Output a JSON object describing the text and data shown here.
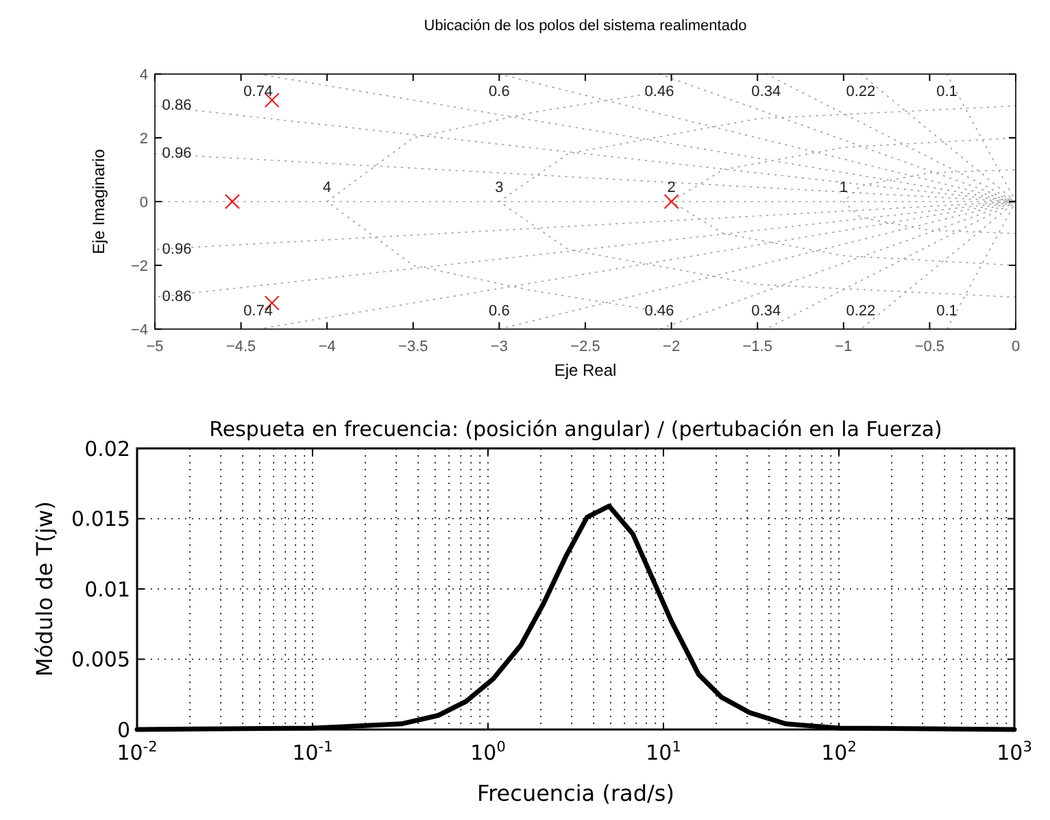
{
  "chart_data": [
    {
      "type": "scatter",
      "title": "Ubicación de los polos del sistema realimentado",
      "xlabel": "Eje Real",
      "ylabel": "Eje Imaginario",
      "xlim": [
        -5,
        0
      ],
      "ylim": [
        -4,
        4
      ],
      "xticks": [
        -5,
        -4.5,
        -4,
        -3.5,
        -3,
        -2.5,
        -2,
        -1.5,
        -1,
        -0.5,
        0
      ],
      "yticks": [
        -4,
        -2,
        0,
        2,
        4
      ],
      "series": [
        {
          "type": "line",
          "line_style": "dotted",
          "marker": "none",
          "color": "#a0a0a0",
          "x": [
            -0.4,
            0,
            -0.4
          ],
          "values": [
            4,
            0,
            -4
          ]
        },
        {
          "type": "line",
          "line_style": "dotted",
          "marker": "none",
          "color": "#a0a0a0",
          "x": [
            -0.9,
            0,
            -0.9
          ],
          "values": [
            4,
            0,
            -4
          ]
        },
        {
          "type": "line",
          "line_style": "dotted",
          "marker": "none",
          "color": "#a0a0a0",
          "x": [
            -1.45,
            0,
            -1.45
          ],
          "values": [
            4,
            0,
            -4
          ]
        },
        {
          "type": "line",
          "line_style": "dotted",
          "marker": "none",
          "color": "#a0a0a0",
          "x": [
            -2.07,
            0,
            -2.07
          ],
          "values": [
            4,
            0,
            -4
          ]
        },
        {
          "type": "line",
          "line_style": "dotted",
          "marker": "none",
          "color": "#a0a0a0",
          "x": [
            -3,
            0,
            -3
          ],
          "values": [
            4,
            0,
            -4
          ]
        },
        {
          "type": "line",
          "line_style": "dotted",
          "marker": "none",
          "color": "#a0a0a0",
          "x": [
            -4.4,
            0,
            -4.4
          ],
          "values": [
            4,
            0,
            -4
          ]
        },
        {
          "type": "line",
          "line_style": "dotted",
          "marker": "none",
          "color": "#a0a0a0",
          "x": [
            -5,
            0,
            -5
          ],
          "values": [
            3,
            0,
            -3
          ]
        },
        {
          "type": "line",
          "line_style": "dotted",
          "marker": "none",
          "color": "#a0a0a0",
          "x": [
            -5,
            0,
            -5
          ],
          "values": [
            1.5,
            0,
            -1.5
          ]
        },
        {
          "type": "line",
          "line_style": "dotted",
          "marker": "none",
          "color": "#a0a0a0",
          "x": [
            -5,
            0
          ],
          "values": [
            0,
            0
          ]
        },
        {
          "type": "line",
          "line_style": "dotted",
          "marker": "none",
          "color": "#a0a0a0",
          "x": [
            0,
            -0.5,
            -0.9,
            -1,
            -0.9,
            -0.5,
            0
          ],
          "values": [
            -1,
            -0.9,
            -0.5,
            0,
            0.5,
            0.9,
            1
          ]
        },
        {
          "type": "line",
          "line_style": "dotted",
          "marker": "none",
          "color": "#a0a0a0",
          "x": [
            0,
            -1,
            -1.7,
            -2,
            -1.7,
            -1,
            0
          ],
          "values": [
            -2,
            -1.7,
            -1,
            0,
            1,
            1.7,
            2
          ]
        },
        {
          "type": "line",
          "line_style": "dotted",
          "marker": "none",
          "color": "#a0a0a0",
          "x": [
            0,
            -1.5,
            -2.6,
            -3,
            -2.6,
            -1.5,
            0
          ],
          "values": [
            -3,
            -2.6,
            -1.5,
            0,
            1.5,
            2.6,
            3
          ]
        },
        {
          "type": "line",
          "line_style": "dotted",
          "marker": "none",
          "color": "#a0a0a0",
          "x": [
            -2,
            -2.8,
            -3.5,
            -4,
            -3.5,
            -2.8,
            -2
          ],
          "values": [
            -3.5,
            -2.8,
            -2,
            0,
            2,
            2.8,
            3.5
          ]
        },
        {
          "marker": "cross",
          "color": "#ff0000",
          "x": [
            -4.32,
            -4.32,
            -4.55,
            -2
          ],
          "values": [
            3.18,
            -3.18,
            0,
            0
          ]
        }
      ],
      "annotations": [
        {
          "text": "0.74",
          "x": -4.4,
          "y": 4
        },
        {
          "text": "0.6",
          "x": -3,
          "y": 4
        },
        {
          "text": "0.46",
          "x": -2.07,
          "y": 4
        },
        {
          "text": "0.34",
          "x": -1.45,
          "y": 4
        },
        {
          "text": "0.22",
          "x": -0.9,
          "y": 4
        },
        {
          "text": "0.1",
          "x": -0.4,
          "y": 4
        },
        {
          "text": "0.74",
          "x": -4.4,
          "y": -4
        },
        {
          "text": "0.6",
          "x": -3,
          "y": -4
        },
        {
          "text": "0.46",
          "x": -2.07,
          "y": -4
        },
        {
          "text": "0.34",
          "x": -1.45,
          "y": -4
        },
        {
          "text": "0.22",
          "x": -0.9,
          "y": -4
        },
        {
          "text": "0.1",
          "x": -0.4,
          "y": -4
        },
        {
          "text": "0.86",
          "x": -5,
          "y": 3
        },
        {
          "text": "0.96",
          "x": -5,
          "y": 1.5
        },
        {
          "text": "0.96",
          "x": -5,
          "y": -1.5
        },
        {
          "text": "0.86",
          "x": -5,
          "y": -3
        },
        {
          "text": "4",
          "x": -4,
          "y": 0
        },
        {
          "text": "3",
          "x": -3,
          "y": 0
        },
        {
          "text": "2",
          "x": -2,
          "y": 0
        },
        {
          "text": "1",
          "x": -1,
          "y": 0
        }
      ]
    },
    {
      "type": "line",
      "title": "Respueta en frecuencia: (posición angular) / (pertubación en la Fuerza)",
      "xlabel": "Frecuencia (rad/s)",
      "ylabel": "Módulo de T(jw)",
      "log": "x",
      "grid": true,
      "line_style": "solid",
      "marker": "none",
      "xlim": [
        0.01,
        1000
      ],
      "ylim": [
        0,
        0.02
      ],
      "xticks": [
        {
          "value": 0.01,
          "label": "10$^{-2}$"
        },
        {
          "value": 0.1,
          "label": "10$^{-1}$"
        },
        {
          "value": 1,
          "label": "10$^{0}$"
        },
        {
          "value": 10,
          "label": "10$^{1}$"
        },
        {
          "value": 100,
          "label": "10$^{2}$"
        },
        {
          "value": 1000,
          "label": "10$^{3}$"
        }
      ],
      "yticks": [
        0,
        0.005,
        0.01,
        0.015,
        0.02
      ],
      "series": [
        {
          "color": "#000000",
          "x": [
            0.01,
            0.1,
            0.32,
            0.52,
            0.75,
            1.07,
            1.54,
            2.08,
            2.8,
            3.67,
            4.9,
            6.7,
            11.1,
            15.9,
            21.4,
            31,
            50,
            100,
            1000
          ],
          "values": [
            0,
            0.0001,
            0.0004,
            0.001,
            0.002,
            0.0036,
            0.006,
            0.009,
            0.0124,
            0.0151,
            0.0159,
            0.0139,
            0.0077,
            0.0039,
            0.0023,
            0.0012,
            0.0004,
            0.0001,
            0
          ]
        }
      ]
    }
  ]
}
